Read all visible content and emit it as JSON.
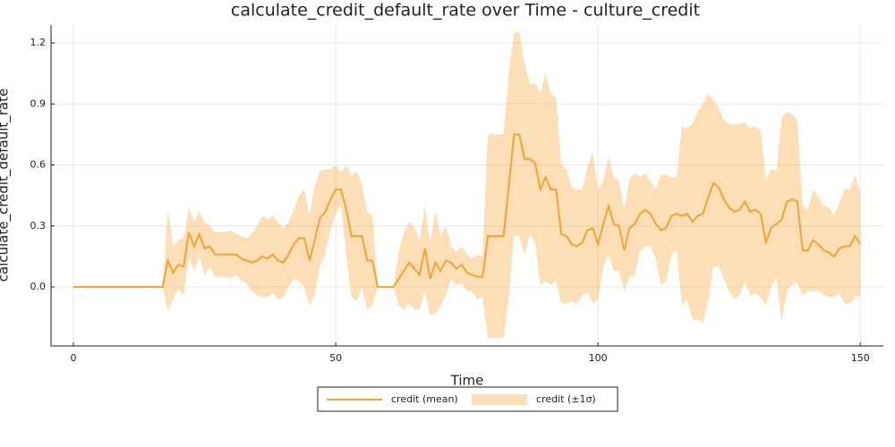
{
  "chart_data": {
    "type": "line-band",
    "title": "calculate_credit_default_rate over Time - culture_credit",
    "xlabel": "Time",
    "ylabel": "calculate_credit_default_rate",
    "x": [
      0,
      1,
      2,
      3,
      4,
      5,
      6,
      7,
      8,
      9,
      10,
      11,
      12,
      13,
      14,
      15,
      16,
      17,
      18,
      19,
      20,
      21,
      22,
      23,
      24,
      25,
      26,
      27,
      28,
      29,
      30,
      31,
      32,
      33,
      34,
      35,
      36,
      37,
      38,
      39,
      40,
      41,
      42,
      43,
      44,
      45,
      46,
      47,
      48,
      49,
      50,
      51,
      52,
      53,
      54,
      55,
      56,
      57,
      58,
      59,
      60,
      61,
      62,
      63,
      64,
      65,
      66,
      67,
      68,
      69,
      70,
      71,
      72,
      73,
      74,
      75,
      76,
      77,
      78,
      79,
      80,
      81,
      82,
      83,
      84,
      85,
      86,
      87,
      88,
      89,
      90,
      91,
      92,
      93,
      94,
      95,
      96,
      97,
      98,
      99,
      100,
      101,
      102,
      103,
      104,
      105,
      106,
      107,
      108,
      109,
      110,
      111,
      112,
      113,
      114,
      115,
      116,
      117,
      118,
      119,
      120,
      121,
      122,
      123,
      124,
      125,
      126,
      127,
      128,
      129,
      130,
      131,
      132,
      133,
      134,
      135,
      136,
      137,
      138,
      139,
      140,
      141,
      142,
      143,
      144,
      145,
      146,
      147,
      148,
      149,
      150
    ],
    "series": [
      {
        "name": "credit (mean)",
        "color": "#f5a331",
        "values": [
          0,
          0,
          0,
          0,
          0,
          0,
          0,
          0,
          0,
          0,
          0,
          0,
          0,
          0,
          0,
          0,
          0,
          0,
          0.13,
          0.07,
          0.11,
          0.1,
          0.27,
          0.2,
          0.26,
          0.19,
          0.2,
          0.16,
          0.16,
          0.16,
          0.16,
          0.16,
          0.14,
          0.13,
          0.12,
          0.13,
          0.15,
          0.14,
          0.16,
          0.13,
          0.12,
          0.16,
          0.21,
          0.24,
          0.24,
          0.13,
          0.23,
          0.34,
          0.37,
          0.43,
          0.48,
          0.48,
          0.38,
          0.25,
          0.25,
          0.25,
          0.13,
          0.13,
          0,
          0,
          0,
          0,
          0.04,
          0.08,
          0.12,
          0.09,
          0.06,
          0.19,
          0.04,
          0.12,
          0.08,
          0.13,
          0.12,
          0.09,
          0.11,
          0.07,
          0.06,
          0.05,
          0.05,
          0.25,
          0.25,
          0.25,
          0.25,
          0.5,
          0.75,
          0.75,
          0.63,
          0.63,
          0.61,
          0.48,
          0.54,
          0.48,
          0.48,
          0.26,
          0.25,
          0.21,
          0.2,
          0.22,
          0.28,
          0.29,
          0.21,
          0.31,
          0.4,
          0.31,
          0.3,
          0.18,
          0.29,
          0.31,
          0.36,
          0.38,
          0.36,
          0.31,
          0.28,
          0.29,
          0.35,
          0.36,
          0.35,
          0.36,
          0.32,
          0.35,
          0.36,
          0.44,
          0.51,
          0.49,
          0.43,
          0.39,
          0.37,
          0.38,
          0.42,
          0.37,
          0.38,
          0.36,
          0.22,
          0.29,
          0.31,
          0.33,
          0.42,
          0.43,
          0.42,
          0.18,
          0.18,
          0.23,
          0.21,
          0.18,
          0.17,
          0.15,
          0.19,
          0.2,
          0.2,
          0.25,
          0.21
        ]
      },
      {
        "name": "credit (±1σ)",
        "color": "#f5a331",
        "upper": [
          0,
          0,
          0,
          0,
          0,
          0,
          0,
          0,
          0,
          0,
          0,
          0,
          0,
          0,
          0,
          0,
          0,
          0,
          0.38,
          0.2,
          0.23,
          0.24,
          0.39,
          0.32,
          0.37,
          0.32,
          0.3,
          0.27,
          0.27,
          0.27,
          0.28,
          0.26,
          0.25,
          0.24,
          0.26,
          0.3,
          0.35,
          0.33,
          0.35,
          0.32,
          0.29,
          0.32,
          0.38,
          0.45,
          0.48,
          0.35,
          0.5,
          0.57,
          0.58,
          0.58,
          0.6,
          0.56,
          0.6,
          0.55,
          0.57,
          0.5,
          0.37,
          0.35,
          0,
          0,
          0,
          0,
          0.17,
          0.27,
          0.32,
          0.29,
          0.23,
          0.4,
          0.22,
          0.37,
          0.25,
          0.3,
          0.2,
          0.17,
          0.2,
          0.16,
          0.14,
          0.16,
          0.15,
          0.75,
          0.75,
          0.75,
          0.75,
          1.05,
          1.25,
          1.25,
          1.1,
          1.0,
          1.0,
          0.95,
          1.05,
          0.95,
          0.93,
          0.6,
          0.58,
          0.49,
          0.48,
          0.48,
          0.59,
          0.66,
          0.48,
          0.52,
          0.64,
          0.54,
          0.52,
          0.38,
          0.53,
          0.56,
          0.54,
          0.56,
          0.52,
          0.48,
          0.55,
          0.55,
          0.54,
          0.54,
          0.79,
          0.78,
          0.8,
          0.86,
          0.9,
          0.95,
          0.92,
          0.88,
          0.82,
          0.8,
          0.8,
          0.8,
          0.81,
          0.78,
          0.79,
          0.77,
          0.53,
          0.58,
          0.57,
          0.83,
          0.86,
          0.85,
          0.82,
          0.4,
          0.38,
          0.48,
          0.44,
          0.4,
          0.39,
          0.35,
          0.41,
          0.48,
          0.48,
          0.55,
          0.46
        ],
        "lower": [
          0,
          0,
          0,
          0,
          0,
          0,
          0,
          0,
          0,
          0,
          0,
          0,
          0,
          0,
          0,
          0,
          0,
          0,
          -0.12,
          -0.06,
          -0.01,
          -0.04,
          0.15,
          0.08,
          0.15,
          0.06,
          0.1,
          0.05,
          0.05,
          0.05,
          0.04,
          0.06,
          0.03,
          0.02,
          -0.02,
          -0.04,
          -0.05,
          -0.05,
          -0.03,
          -0.06,
          -0.05,
          0.0,
          0.04,
          0.03,
          0.0,
          -0.09,
          -0.04,
          0.11,
          0.16,
          0.28,
          0.36,
          0.4,
          0.16,
          -0.05,
          -0.07,
          0.0,
          -0.11,
          -0.09,
          0,
          0,
          0,
          0,
          -0.09,
          -0.11,
          -0.08,
          -0.11,
          -0.11,
          -0.02,
          -0.14,
          -0.13,
          -0.09,
          -0.04,
          0.04,
          0.01,
          0.02,
          -0.02,
          -0.02,
          -0.06,
          -0.05,
          -0.25,
          -0.25,
          -0.25,
          -0.25,
          -0.05,
          0.25,
          0.25,
          0.16,
          0.26,
          0.22,
          0.01,
          0.03,
          0.01,
          0.03,
          -0.08,
          -0.08,
          -0.07,
          -0.08,
          -0.04,
          -0.03,
          -0.08,
          -0.06,
          0.1,
          0.16,
          0.08,
          0.08,
          -0.02,
          0.05,
          0.06,
          0.18,
          0.2,
          0.2,
          0.14,
          0.01,
          0.03,
          0.16,
          0.18,
          -0.09,
          -0.06,
          -0.16,
          -0.16,
          -0.18,
          -0.07,
          0.1,
          0.1,
          0.04,
          -0.02,
          -0.06,
          -0.04,
          0.03,
          -0.04,
          -0.03,
          -0.05,
          -0.09,
          0.0,
          0.05,
          -0.17,
          -0.02,
          0.01,
          0.02,
          -0.04,
          -0.02,
          -0.02,
          -0.02,
          -0.04,
          -0.05,
          -0.05,
          -0.03,
          -0.08,
          -0.08,
          -0.05,
          -0.04
        ]
      }
    ],
    "xlim": [
      -4.27,
      154.4
    ],
    "xticks": [
      0,
      50,
      100,
      150
    ],
    "ylim": [
      -0.29,
      1.288
    ],
    "yticks": [
      {
        "value": 0,
        "label": "0.0"
      },
      0.3,
      0.6,
      0.9,
      1.2
    ],
    "grid": true,
    "legend": "bottom"
  }
}
